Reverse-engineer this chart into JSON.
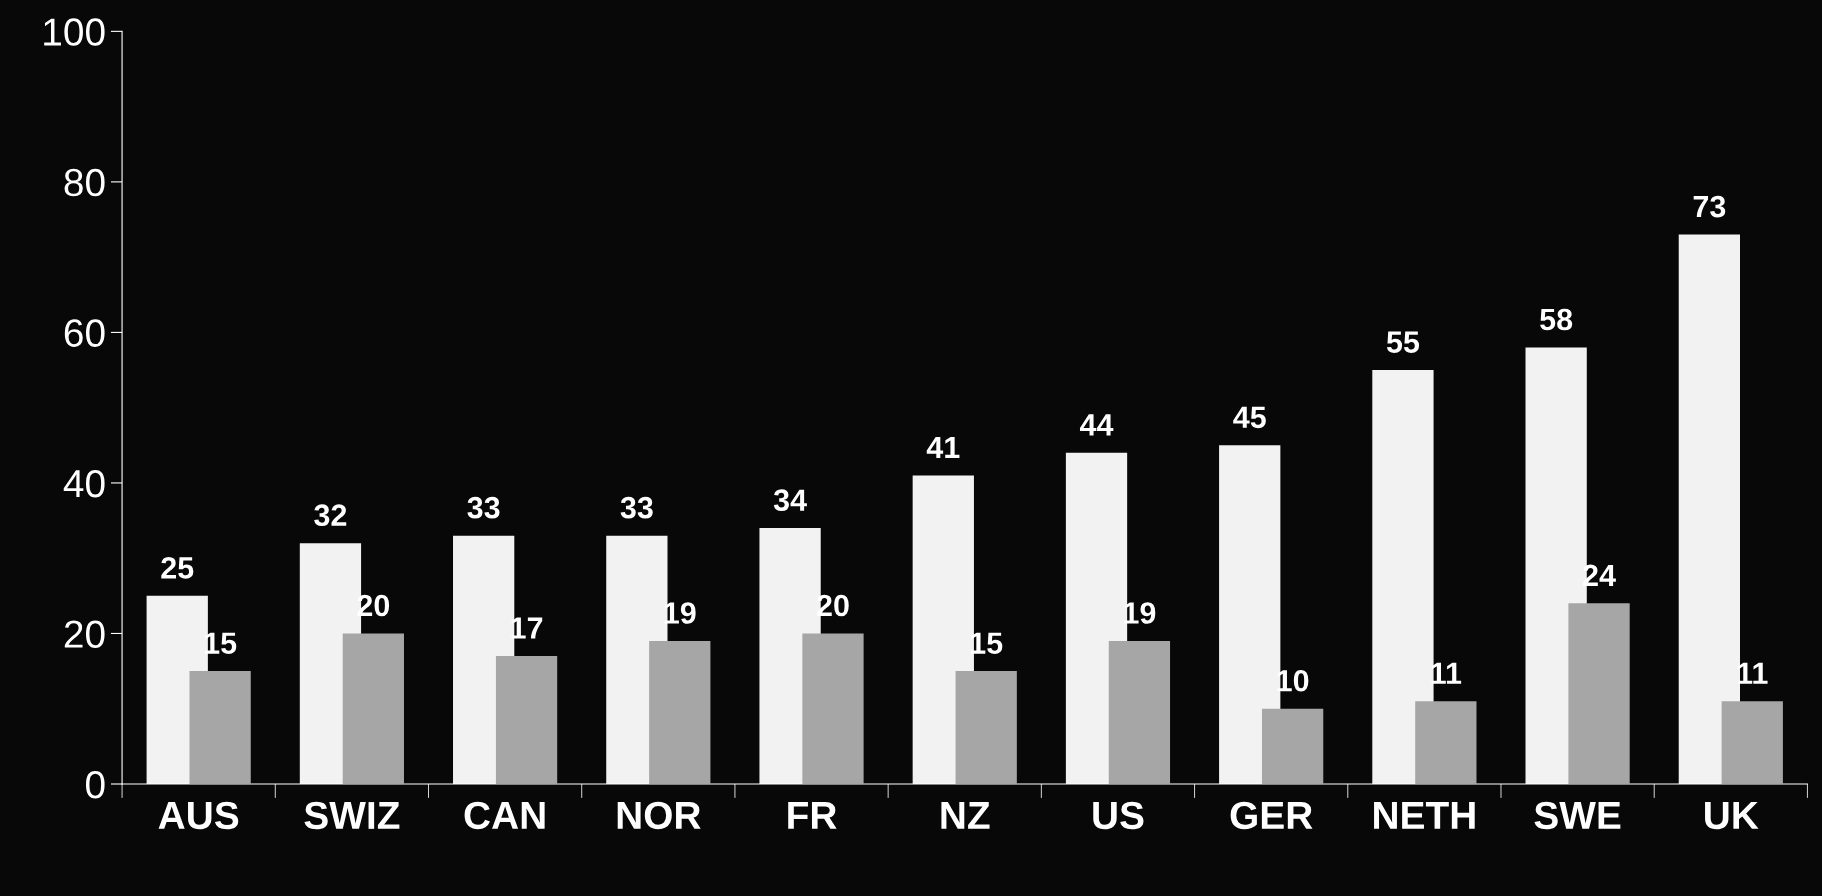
{
  "chart_data": {
    "type": "bar",
    "categories": [
      "AUS",
      "SWIZ",
      "CAN",
      "NOR",
      "FR",
      "NZ",
      "US",
      "GER",
      "NETH",
      "SWE",
      "UK"
    ],
    "series": [
      {
        "color": "#f2f2f2",
        "values": [
          25,
          32,
          33,
          33,
          34,
          41,
          44,
          45,
          55,
          58,
          73
        ]
      },
      {
        "color": "#a6a6a6",
        "values": [
          15,
          20,
          17,
          19,
          20,
          15,
          19,
          10,
          11,
          24,
          11
        ]
      }
    ],
    "ylim": [
      0,
      100
    ],
    "yticks": [
      0,
      20,
      40,
      60,
      80,
      100
    ],
    "data_labels": true,
    "grid": false,
    "legend": false
  }
}
